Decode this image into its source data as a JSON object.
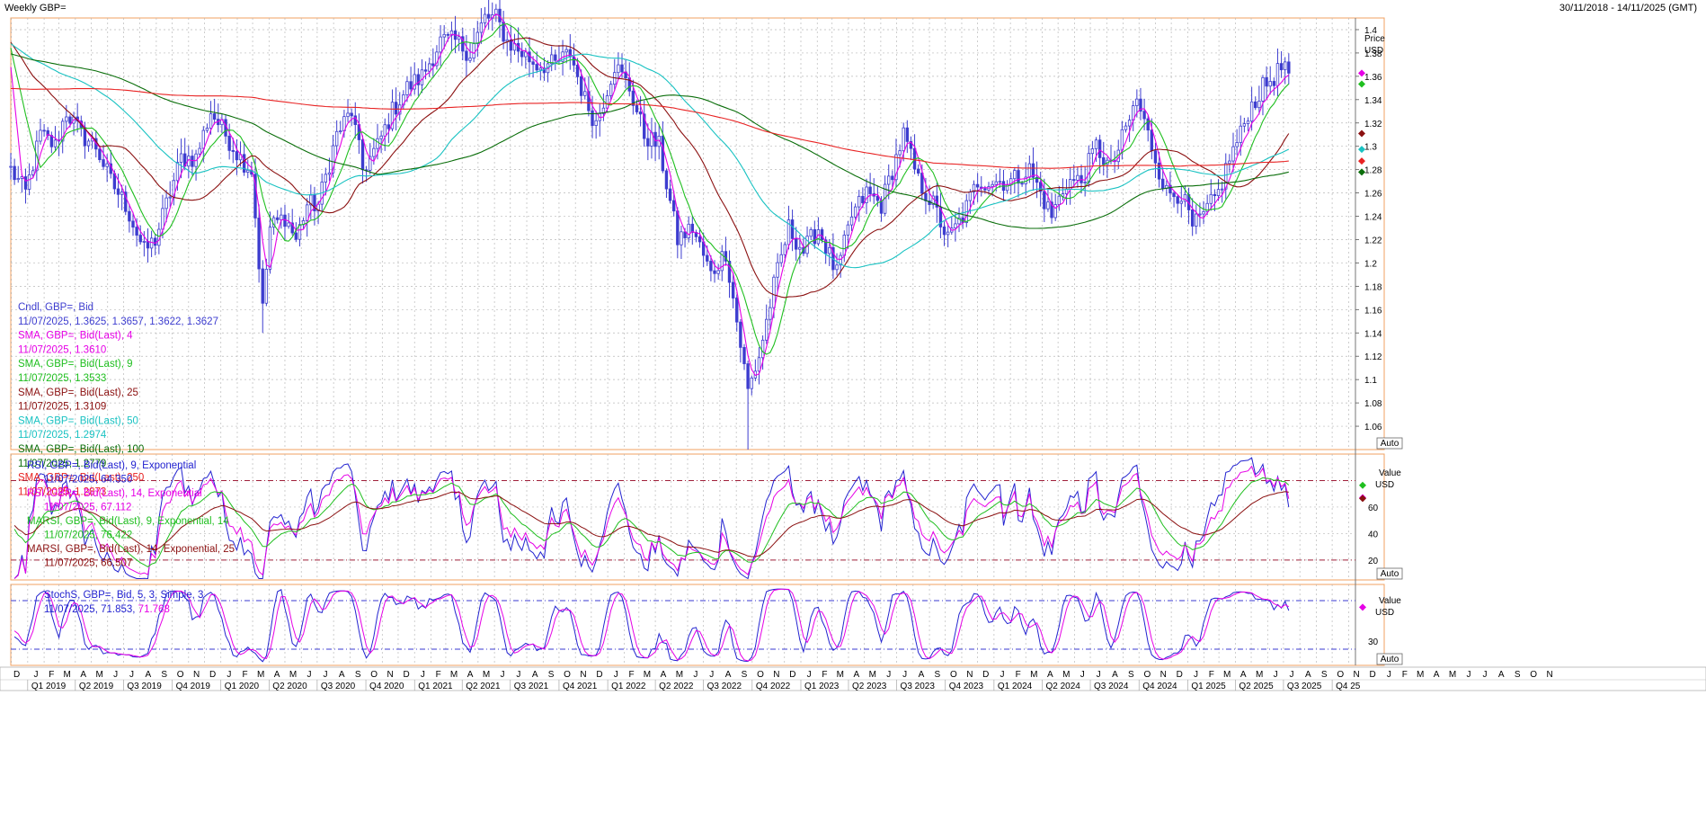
{
  "window": {
    "title": "Weekly GBP=",
    "date_range": "30/11/2018 - 14/11/2025 (GMT)"
  },
  "colors": {
    "candle": "#3d3dcf",
    "sma4": "#e600e6",
    "sma9": "#1fbf1f",
    "sma25": "#8b1010",
    "sma50": "#19c2c2",
    "sma100": "#0a6e0a",
    "sma250": "#e82222",
    "rsi9": "#2323d0",
    "rsi14": "#e600e6",
    "marsi9": "#1fbf1f",
    "marsi14": "#8b1010",
    "stoch_k": "#2323d0",
    "stoch_d": "#e600e6",
    "grid": "#b9b9b9",
    "panel_border": "#f0a060"
  },
  "price_panel": {
    "axis_title": "Price",
    "axis_unit": "USD",
    "auto_label": "Auto",
    "legend": [
      {
        "label": "Cndl, GBP=, Bid",
        "color": "#3d3dcf"
      },
      {
        "label": "11/07/2025, 1.3625, 1.3657, 1.3622, 1.3627",
        "color": "#3d3dcf"
      },
      {
        "label": "SMA, GBP=, Bid(Last),  4",
        "color": "#e600e6"
      },
      {
        "label": "11/07/2025, 1.3610",
        "color": "#e600e6"
      },
      {
        "label": "SMA, GBP=, Bid(Last),  9",
        "color": "#1fbf1f"
      },
      {
        "label": "11/07/2025, 1.3533",
        "color": "#1fbf1f"
      },
      {
        "label": "SMA, GBP=, Bid(Last),  25",
        "color": "#8b1010"
      },
      {
        "label": "11/07/2025, 1.3109",
        "color": "#8b1010"
      },
      {
        "label": "SMA, GBP=, Bid(Last),  50",
        "color": "#19c2c2"
      },
      {
        "label": "11/07/2025, 1.2974",
        "color": "#19c2c2"
      },
      {
        "label": "SMA, GBP=, Bid(Last),  100",
        "color": "#0a6e0a"
      },
      {
        "label": "11/07/2025, 1.2779",
        "color": "#0a6e0a"
      },
      {
        "label": "SMA, GBP=, Bid(Last),  250",
        "color": "#e82222"
      },
      {
        "label": "11/07/2025, 1.2873",
        "color": "#e82222"
      }
    ]
  },
  "rsi_panel": {
    "axis_title": "Value",
    "axis_unit": "USD",
    "auto_label": "Auto",
    "legend": [
      {
        "label": "RSI, GBP=, Bid(Last),  9, Exponential",
        "color": "#2323d0"
      },
      {
        "label": "11/07/2025, 64.350",
        "color": "#2323d0"
      },
      {
        "label": "RSI, GBP=, Bid(Last),  14, Exponential",
        "color": "#e600e6"
      },
      {
        "label": "11/07/2025, 67.112",
        "color": "#e600e6"
      },
      {
        "label": "MARSI, GBP=, Bid(Last),  9, Exponential, 14",
        "color": "#1fbf1f"
      },
      {
        "label": "11/07/2025, 76.422",
        "color": "#1fbf1f"
      },
      {
        "label": "MARSI, GBP=, Bid(Last),  14, Exponential, 25",
        "color": "#8b1010"
      },
      {
        "label": "11/07/2025, 66.507",
        "color": "#8b1010"
      }
    ]
  },
  "stoch_panel": {
    "axis_title": "Value",
    "axis_unit": "USD",
    "auto_label": "Auto",
    "legend_title": "StochS, GBP=, Bid,  5, 3, Simple, 3",
    "legend_date": "11/07/2025, ",
    "legend_k": "71.853",
    "legend_d": "71.768"
  },
  "time_axis": {
    "months": [
      "D",
      "J",
      "F",
      "M",
      "A",
      "M",
      "J",
      "J",
      "A",
      "S",
      "O",
      "N",
      "D",
      "J",
      "F",
      "M",
      "A",
      "M",
      "J",
      "J",
      "A",
      "S",
      "O",
      "N",
      "D",
      "J",
      "F",
      "M",
      "A",
      "M",
      "J",
      "J",
      "A",
      "S",
      "O",
      "N",
      "D",
      "J",
      "F",
      "M",
      "A",
      "M",
      "J",
      "J",
      "A",
      "S",
      "O",
      "N",
      "D",
      "J",
      "F",
      "M",
      "A",
      "M",
      "J",
      "J",
      "A",
      "S",
      "O",
      "N",
      "D",
      "J",
      "F",
      "M",
      "A",
      "M",
      "J",
      "J",
      "A",
      "S",
      "O",
      "N",
      "D",
      "J",
      "F",
      "M",
      "A",
      "M",
      "J",
      "J",
      "A",
      "S",
      "O",
      "N",
      "D",
      "J",
      "F",
      "M",
      "A",
      "M",
      "J",
      "J",
      "A",
      "S",
      "O",
      "N"
    ],
    "quarters": [
      "Q1 2019",
      "Q2 2019",
      "Q3 2019",
      "Q4 2019",
      "Q1 2020",
      "Q2 2020",
      "Q3 2020",
      "Q4 2020",
      "Q1 2021",
      "Q2 2021",
      "Q3 2021",
      "Q4 2021",
      "Q1 2022",
      "Q2 2022",
      "Q3 2022",
      "Q4 2022",
      "Q1 2023",
      "Q2 2023",
      "Q3 2023",
      "Q4 2023",
      "Q1 2024",
      "Q2 2024",
      "Q3 2024",
      "Q4 2024",
      "Q1 2025",
      "Q2 2025",
      "Q3 2025",
      "Q4 25"
    ]
  },
  "chart_data": [
    {
      "type": "candlestick",
      "title": "Weekly GBP=",
      "ylabel": "Price USD",
      "ylim": [
        1.04,
        1.41
      ],
      "y_ticks": [
        "1.06",
        "1.08",
        "1.1",
        "1.12",
        "1.14",
        "1.16",
        "1.18",
        "1.2",
        "1.22",
        "1.24",
        "1.26",
        "1.28",
        "1.3",
        "1.32",
        "1.34",
        "1.36",
        "1.38",
        "1.4"
      ],
      "x_range": [
        "2018-11-30",
        "2025-11-14"
      ],
      "last_bar": {
        "date": "11/07/2025",
        "open": 1.3625,
        "high": 1.3657,
        "low": 1.3622,
        "close": 1.3627
      },
      "close_keypoints": [
        [
          "2018-11-30",
          1.28
        ],
        [
          "2018-12-28",
          1.26
        ],
        [
          "2019-01-25",
          1.31
        ],
        [
          "2019-02-22",
          1.3
        ],
        [
          "2019-03-15",
          1.33
        ],
        [
          "2019-04-12",
          1.31
        ],
        [
          "2019-05-10",
          1.3
        ],
        [
          "2019-06-07",
          1.27
        ],
        [
          "2019-07-05",
          1.25
        ],
        [
          "2019-08-09",
          1.21
        ],
        [
          "2019-08-30",
          1.22
        ],
        [
          "2019-09-20",
          1.25
        ],
        [
          "2019-10-18",
          1.29
        ],
        [
          "2019-11-15",
          1.29
        ],
        [
          "2019-12-13",
          1.33
        ],
        [
          "2020-01-10",
          1.31
        ],
        [
          "2020-02-07",
          1.29
        ],
        [
          "2020-02-28",
          1.28
        ],
        [
          "2020-03-20",
          1.16
        ],
        [
          "2020-04-03",
          1.23
        ],
        [
          "2020-05-01",
          1.24
        ],
        [
          "2020-05-22",
          1.22
        ],
        [
          "2020-06-12",
          1.25
        ],
        [
          "2020-07-03",
          1.25
        ],
        [
          "2020-08-07",
          1.31
        ],
        [
          "2020-09-04",
          1.33
        ],
        [
          "2020-09-25",
          1.28
        ],
        [
          "2020-10-23",
          1.3
        ],
        [
          "2020-11-20",
          1.33
        ],
        [
          "2020-12-18",
          1.35
        ],
        [
          "2021-01-15",
          1.36
        ],
        [
          "2021-02-19",
          1.39
        ],
        [
          "2021-03-19",
          1.39
        ],
        [
          "2021-04-16",
          1.38
        ],
        [
          "2021-05-14",
          1.41
        ],
        [
          "2021-06-04",
          1.41
        ],
        [
          "2021-06-25",
          1.39
        ],
        [
          "2021-07-23",
          1.38
        ],
        [
          "2021-08-20",
          1.37
        ],
        [
          "2021-09-24",
          1.37
        ],
        [
          "2021-10-22",
          1.38
        ],
        [
          "2021-11-19",
          1.34
        ],
        [
          "2021-12-10",
          1.32
        ],
        [
          "2022-01-14",
          1.37
        ],
        [
          "2022-02-11",
          1.35
        ],
        [
          "2022-03-11",
          1.31
        ],
        [
          "2022-04-08",
          1.3
        ],
        [
          "2022-05-13",
          1.22
        ],
        [
          "2022-06-10",
          1.23
        ],
        [
          "2022-07-15",
          1.19
        ],
        [
          "2022-08-12",
          1.21
        ],
        [
          "2022-09-02",
          1.15
        ],
        [
          "2022-09-23",
          1.09
        ],
        [
          "2022-10-14",
          1.12
        ],
        [
          "2022-11-11",
          1.18
        ],
        [
          "2022-12-09",
          1.23
        ],
        [
          "2023-01-06",
          1.21
        ],
        [
          "2023-02-03",
          1.23
        ],
        [
          "2023-03-10",
          1.19
        ],
        [
          "2023-04-07",
          1.24
        ],
        [
          "2023-05-05",
          1.26
        ],
        [
          "2023-06-02",
          1.25
        ],
        [
          "2023-07-14",
          1.31
        ],
        [
          "2023-08-11",
          1.27
        ],
        [
          "2023-09-08",
          1.25
        ],
        [
          "2023-10-06",
          1.22
        ],
        [
          "2023-11-03",
          1.24
        ],
        [
          "2023-12-01",
          1.27
        ],
        [
          "2024-01-05",
          1.27
        ],
        [
          "2024-02-02",
          1.27
        ],
        [
          "2024-03-08",
          1.28
        ],
        [
          "2024-04-19",
          1.24
        ],
        [
          "2024-05-17",
          1.27
        ],
        [
          "2024-06-14",
          1.27
        ],
        [
          "2024-07-12",
          1.3
        ],
        [
          "2024-08-09",
          1.28
        ],
        [
          "2024-09-27",
          1.34
        ],
        [
          "2024-10-25",
          1.3
        ],
        [
          "2024-11-22",
          1.26
        ],
        [
          "2024-12-20",
          1.26
        ],
        [
          "2025-01-10",
          1.23
        ],
        [
          "2025-01-31",
          1.24
        ],
        [
          "2025-02-28",
          1.26
        ],
        [
          "2025-03-21",
          1.29
        ],
        [
          "2025-04-11",
          1.31
        ],
        [
          "2025-04-25",
          1.33
        ],
        [
          "2025-05-23",
          1.35
        ],
        [
          "2025-06-13",
          1.36
        ],
        [
          "2025-07-04",
          1.37
        ],
        [
          "2025-07-11",
          1.3627
        ]
      ],
      "lows": [
        [
          "2020-03-20",
          1.14
        ],
        [
          "2022-09-23",
          1.04
        ]
      ],
      "sma": {
        "4": 1.361,
        "9": 1.3533,
        "25": 1.3109,
        "50": 1.2974,
        "100": 1.2779,
        "250": 1.2873
      }
    },
    {
      "type": "line",
      "title": "RSI",
      "ylabel": "Value USD",
      "y_ticks": [
        "20",
        "40",
        "60"
      ],
      "ylim": [
        5,
        100
      ],
      "overbought": 80,
      "oversold": 20,
      "latest": {
        "rsi9": 64.35,
        "rsi14": 67.112,
        "marsi9": 76.422,
        "marsi14": 66.507
      }
    },
    {
      "type": "line",
      "title": "StochS",
      "ylabel": "Value USD",
      "y_ticks": [
        "30"
      ],
      "ylim": [
        0,
        100
      ],
      "overbought": 80,
      "oversold": 20,
      "latest": {
        "k": 71.853,
        "d": 71.768
      }
    }
  ]
}
